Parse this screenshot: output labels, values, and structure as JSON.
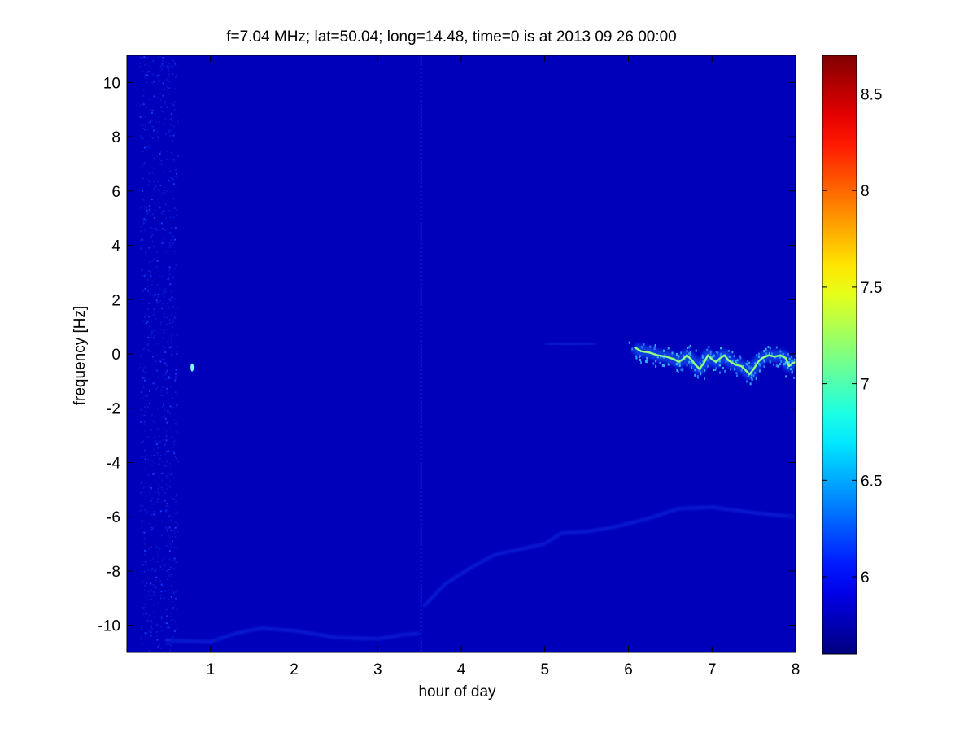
{
  "chart_data": {
    "type": "heatmap",
    "title": "f=7.04 MHz;  lat=50.04; long=14.48, time=0 is at 2013 09 26 00:00",
    "xlabel": "hour of day",
    "ylabel": "frequency [Hz]",
    "xlim": [
      0,
      8
    ],
    "ylim": [
      -11,
      11
    ],
    "x_ticks": [
      1,
      2,
      3,
      4,
      5,
      6,
      7,
      8
    ],
    "y_ticks": [
      -10,
      -8,
      -6,
      -4,
      -2,
      0,
      2,
      4,
      6,
      8,
      10
    ],
    "colormap": "jet",
    "color_range": [
      5.6,
      8.7
    ],
    "colorbar_ticks": [
      6,
      6.5,
      7,
      7.5,
      8,
      8.5
    ],
    "background_level": 5.78,
    "features": {
      "strong_trace": {
        "points": [
          [
            6.07,
            0.25
          ],
          [
            6.15,
            0.1
          ],
          [
            6.25,
            0.05
          ],
          [
            6.35,
            -0.05
          ],
          [
            6.45,
            -0.1
          ],
          [
            6.55,
            -0.2
          ],
          [
            6.6,
            -0.3
          ],
          [
            6.65,
            -0.2
          ],
          [
            6.7,
            -0.05
          ],
          [
            6.75,
            -0.2
          ],
          [
            6.8,
            -0.4
          ],
          [
            6.85,
            -0.55
          ],
          [
            6.9,
            -0.35
          ],
          [
            6.95,
            -0.05
          ],
          [
            7.0,
            -0.2
          ],
          [
            7.05,
            -0.3
          ],
          [
            7.1,
            -0.15
          ],
          [
            7.15,
            -0.05
          ],
          [
            7.2,
            -0.25
          ],
          [
            7.28,
            -0.4
          ],
          [
            7.35,
            -0.45
          ],
          [
            7.4,
            -0.6
          ],
          [
            7.45,
            -0.75
          ],
          [
            7.5,
            -0.55
          ],
          [
            7.55,
            -0.3
          ],
          [
            7.6,
            -0.15
          ],
          [
            7.68,
            -0.05
          ],
          [
            7.75,
            -0.1
          ],
          [
            7.82,
            -0.05
          ],
          [
            7.88,
            -0.15
          ],
          [
            7.92,
            -0.45
          ],
          [
            7.96,
            -0.35
          ],
          [
            8.0,
            -0.3
          ]
        ],
        "level": 7.1
      },
      "faint_traces": [
        [
          [
            0.45,
            -10.55
          ],
          [
            1.0,
            -10.6
          ],
          [
            1.3,
            -10.3
          ],
          [
            1.6,
            -10.1
          ],
          [
            2.0,
            -10.2
          ],
          [
            2.5,
            -10.45
          ],
          [
            3.0,
            -10.5
          ],
          [
            3.3,
            -10.35
          ],
          [
            3.5,
            -10.3
          ]
        ],
        [
          [
            3.55,
            -9.3
          ],
          [
            3.8,
            -8.5
          ],
          [
            4.1,
            -7.9
          ],
          [
            4.4,
            -7.4
          ],
          [
            4.7,
            -7.2
          ],
          [
            5.0,
            -7.0
          ],
          [
            5.2,
            -6.6
          ],
          [
            5.5,
            -6.55
          ],
          [
            5.8,
            -6.4
          ],
          [
            6.2,
            -6.1
          ],
          [
            6.6,
            -5.7
          ],
          [
            7.0,
            -5.65
          ],
          [
            7.5,
            -5.85
          ],
          [
            8.0,
            -6.0
          ]
        ],
        [
          [
            5.0,
            0.4
          ],
          [
            5.3,
            0.35
          ],
          [
            5.6,
            0.4
          ]
        ]
      ],
      "noisy_band_x": [
        0.15,
        0.6
      ],
      "vertical_line_x": 3.52,
      "spot": [
        0.78,
        -0.5
      ]
    }
  }
}
